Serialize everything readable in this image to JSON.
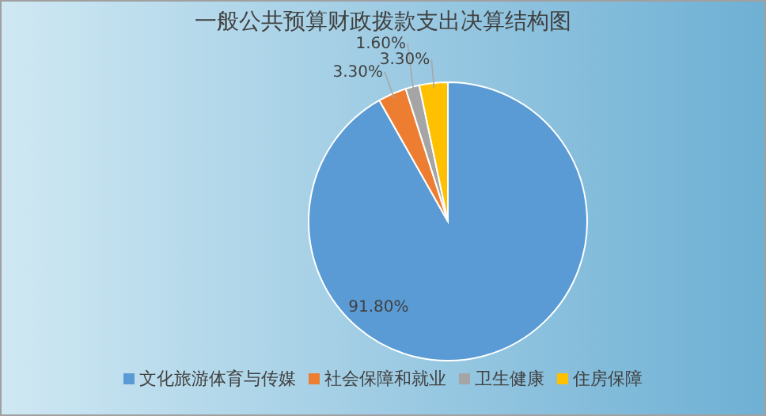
{
  "chart_data": {
    "type": "pie",
    "title": "一般公共预算财政拨款支出决算结构图",
    "categories": [
      "文化旅游体育与传媒",
      "社会保障和就业",
      "卫生健康",
      "住房保障"
    ],
    "values": [
      91.8,
      3.3,
      1.6,
      3.3
    ],
    "value_labels": [
      "91.80%",
      "3.30%",
      "1.60%",
      "3.30%"
    ],
    "colors": [
      "#5b9bd5",
      "#ed7d31",
      "#a5a5a5",
      "#ffc000"
    ],
    "legend": "bottom"
  }
}
